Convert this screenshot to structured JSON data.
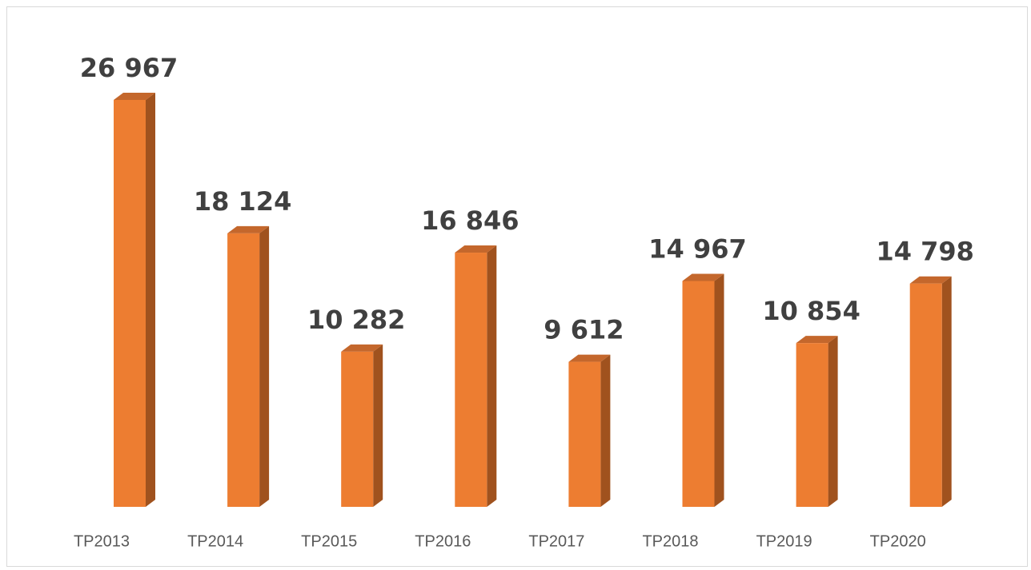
{
  "chart_data": {
    "type": "bar3d",
    "categories": [
      "TP2013",
      "TP2014",
      "TP2015",
      "TP2016",
      "TP2017",
      "TP2018",
      "TP2019",
      "TP2020"
    ],
    "values": [
      26967,
      18124,
      10282,
      16846,
      9612,
      14967,
      10854,
      14798
    ],
    "value_labels": [
      "26 967",
      "18 124",
      "10 282",
      "16 846",
      "9 612",
      "14 967",
      "10 854",
      "14 798"
    ],
    "color": "#ED7D31",
    "side_color": "#A0521E",
    "top_color": "#C4672C"
  }
}
